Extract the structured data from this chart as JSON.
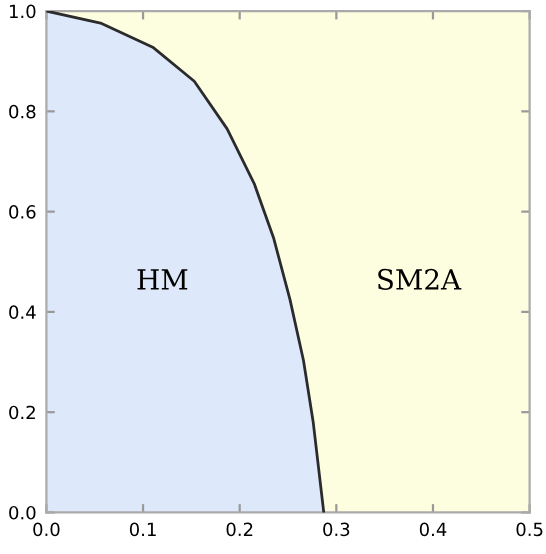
{
  "chart_data": {
    "type": "area",
    "xlim": [
      0,
      0.5
    ],
    "ylim": [
      0,
      1.0
    ],
    "xticks": [
      {
        "value": 0,
        "label": "0.0"
      },
      {
        "value": 0.1,
        "label": "0.1"
      },
      {
        "value": 0.2,
        "label": "0.2"
      },
      {
        "value": 0.3,
        "label": "0.3"
      },
      {
        "value": 0.4,
        "label": "0.4"
      },
      {
        "value": 0.5,
        "label": "0.5"
      }
    ],
    "yticks": [
      {
        "value": 0,
        "label": "0.0"
      },
      {
        "value": 0.2,
        "label": "0.2"
      },
      {
        "value": 0.4,
        "label": "0.4"
      },
      {
        "value": 0.6,
        "label": "0.6"
      },
      {
        "value": 0.8,
        "label": "0.8"
      },
      {
        "value": 1.0,
        "label": "1.0"
      }
    ],
    "series": [
      {
        "color": "#dde9fa",
        "x": [
          0,
          0.056,
          0.11,
          0.153,
          0.187,
          0.215,
          0.235,
          0.252,
          0.266,
          0.276,
          0.287
        ],
        "values": [
          1.0,
          0.976,
          0.928,
          0.86,
          0.765,
          0.656,
          0.548,
          0.425,
          0.303,
          0.181,
          0
        ]
      }
    ],
    "bands": [
      {
        "axis": "x",
        "from": 0,
        "to": 0.5,
        "color": "#fdfde0"
      }
    ],
    "annotations": [
      "HM",
      "SM2A"
    ],
    "grid": false,
    "legend": false
  }
}
